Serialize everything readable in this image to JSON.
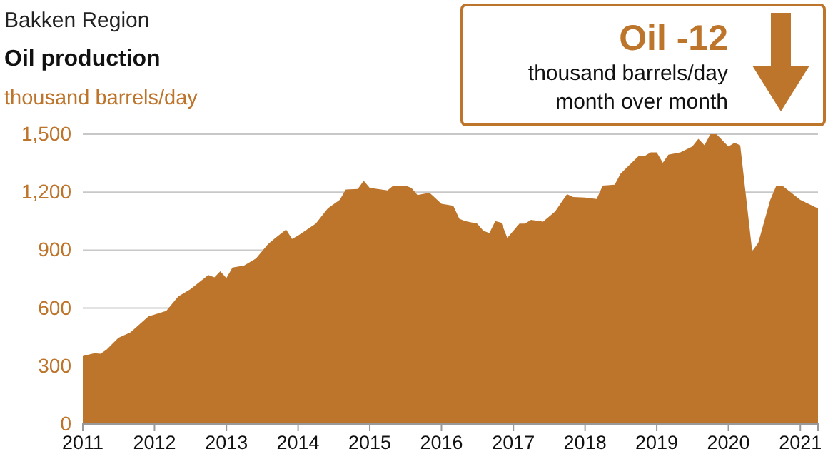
{
  "chart_data": {
    "type": "area",
    "title": "Bakken Region",
    "subtitle": "Oil production",
    "ylabel": "thousand barrels/day",
    "annotations": [
      "Oil -12",
      "thousand barrels/day",
      "month over month"
    ],
    "x": [
      "2011-01",
      "2011-03",
      "2011-04",
      "2011-05",
      "2011-07",
      "2011-09",
      "2011-12",
      "2012-03",
      "2012-05",
      "2012-07",
      "2012-10",
      "2012-11",
      "2012-12",
      "2013-01",
      "2013-02",
      "2013-04",
      "2013-06",
      "2013-08",
      "2013-09",
      "2013-11",
      "2013-12",
      "2014-01",
      "2014-04",
      "2014-06",
      "2014-08",
      "2014-09",
      "2014-11",
      "2014-12",
      "2015-01",
      "2015-03",
      "2015-04",
      "2015-05",
      "2015-07",
      "2015-08",
      "2015-09",
      "2015-11",
      "2016-01",
      "2016-03",
      "2016-04",
      "2016-05",
      "2016-07",
      "2016-08",
      "2016-09",
      "2016-10",
      "2016-11",
      "2016-12",
      "2017-01",
      "2017-02",
      "2017-03",
      "2017-04",
      "2017-06",
      "2017-08",
      "2017-10",
      "2017-11",
      "2018-01",
      "2018-03",
      "2018-04",
      "2018-06",
      "2018-07",
      "2018-10",
      "2018-11",
      "2018-12",
      "2019-01",
      "2019-02",
      "2019-03",
      "2019-05",
      "2019-07",
      "2019-08",
      "2019-09",
      "2019-10",
      "2019-11",
      "2020-01",
      "2020-02",
      "2020-03",
      "2020-05",
      "2020-06",
      "2020-08",
      "2020-09",
      "2020-10",
      "2021-01",
      "2021-04"
    ],
    "series": [
      {
        "color": "#bd742b",
        "values": [
          352,
          367,
          364,
          384,
          446,
          475,
          557,
          586,
          660,
          697,
          771,
          759,
          791,
          756,
          810,
          820,
          857,
          931,
          958,
          1007,
          958,
          975,
          1037,
          1116,
          1160,
          1214,
          1216,
          1259,
          1222,
          1214,
          1209,
          1234,
          1234,
          1222,
          1185,
          1197,
          1140,
          1130,
          1062,
          1050,
          1037,
          1000,
          988,
          1050,
          1042,
          963,
          1000,
          1037,
          1037,
          1057,
          1047,
          1099,
          1190,
          1175,
          1172,
          1165,
          1234,
          1239,
          1296,
          1387,
          1387,
          1406,
          1406,
          1352,
          1394,
          1406,
          1436,
          1476,
          1443,
          1500,
          1500,
          1436,
          1456,
          1443,
          894,
          938,
          1160,
          1234,
          1234,
          1160,
          1116
        ]
      }
    ],
    "xlim": [
      "2011-01",
      "2021-04"
    ],
    "xticks": [
      "2011",
      "2012",
      "2013",
      "2014",
      "2015",
      "2016",
      "2017",
      "2018",
      "2019",
      "2020",
      "2021"
    ],
    "ylim": [
      0,
      1500
    ],
    "yticks": [
      0,
      {
        "value": 300,
        "label": "300"
      },
      600,
      900,
      {
        "value": 1200,
        "label": "1,200"
      },
      {
        "value": 1500,
        "label": "1,500"
      }
    ],
    "grid": "y"
  }
}
